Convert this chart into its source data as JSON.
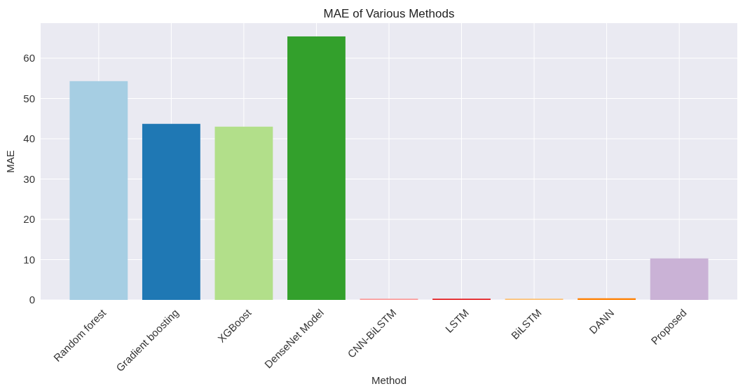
{
  "chart_data": {
    "type": "bar",
    "title": "MAE of Various Methods",
    "xlabel": "Method",
    "ylabel": "MAE",
    "categories": [
      "Random forest",
      "Gradient boosting",
      "XGBoost",
      "DenseNet Model",
      "CNN-BiLSTM",
      "LSTM",
      "BiLSTM",
      "DANN",
      "Proposed"
    ],
    "values": [
      54.3,
      43.7,
      43.0,
      65.4,
      0.3,
      0.3,
      0.3,
      0.4,
      10.3
    ],
    "colors": [
      "#a6cee3",
      "#1f78b4",
      "#b2df8a",
      "#33a02c",
      "#fb9a99",
      "#e31a1c",
      "#fdbf6f",
      "#ff7f00",
      "#cab2d6"
    ],
    "ylim": [
      0,
      68.7
    ],
    "yticks": [
      0,
      10,
      20,
      30,
      40,
      50,
      60
    ],
    "grid": true
  }
}
